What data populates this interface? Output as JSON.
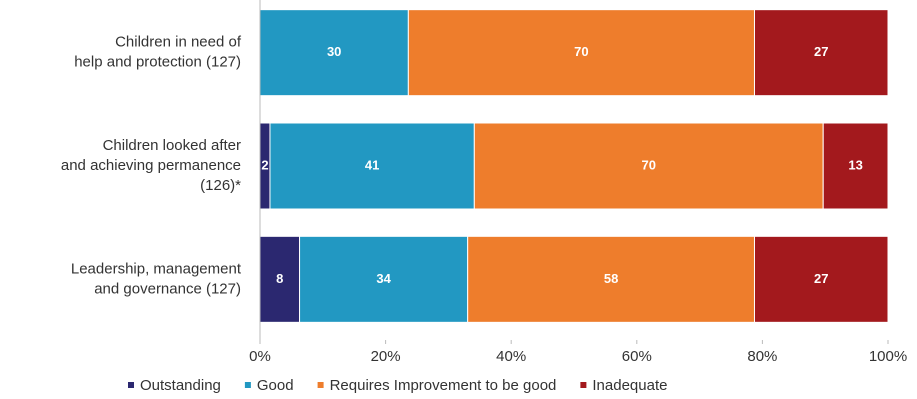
{
  "chart_data": {
    "type": "bar",
    "orientation": "horizontal",
    "stacking": "percent",
    "categories": [
      [
        "Children in need of",
        "help and protection (127)"
      ],
      [
        "Children looked after",
        "and achieving permanence",
        "(126)*"
      ],
      [
        "Leadership, management",
        "and governance (127)"
      ]
    ],
    "series": [
      {
        "name": "Outstanding",
        "color": "#2b2870",
        "values": [
          0,
          2,
          8
        ]
      },
      {
        "name": "Good",
        "color": "#2298c2",
        "values": [
          30,
          41,
          34
        ]
      },
      {
        "name": "Requires Improvement to be good",
        "color": "#ee7d2c",
        "values": [
          70,
          70,
          58
        ]
      },
      {
        "name": "Inadequate",
        "color": "#a3191d",
        "values": [
          27,
          13,
          27
        ]
      }
    ],
    "xlim": [
      0,
      100
    ],
    "xticks": [
      {
        "value": 0,
        "label": "0%"
      },
      {
        "value": 20,
        "label": "20%"
      },
      {
        "value": 40,
        "label": "40%"
      },
      {
        "value": 60,
        "label": "60%"
      },
      {
        "value": 80,
        "label": "80%"
      },
      {
        "value": 100,
        "label": "100%"
      }
    ],
    "legend": "bottom"
  }
}
